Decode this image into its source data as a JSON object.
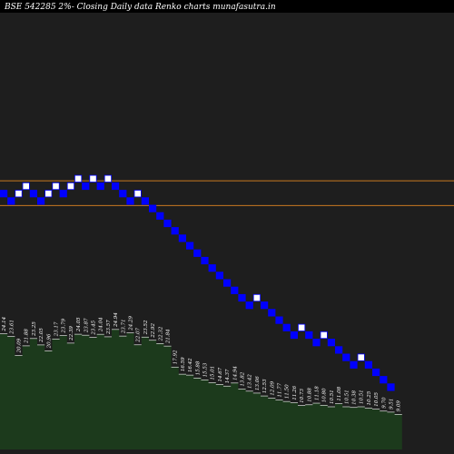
{
  "title": "BSE 542285 2%-  Closing Daily data  Renko  charts munafasutra.in",
  "chart_data": {
    "type": "renko",
    "title": "BSE 542285 2%-  Closing Daily data  Renko  charts munafasutra.in",
    "brick_size_percent": 2,
    "xlabel": "",
    "ylabel": "",
    "colors": {
      "background": "#000000",
      "panel": "#1e1e1e",
      "up_brick": "#ffffff",
      "down_brick": "#0000ff",
      "brick_border": "#0000ff",
      "reference_line": "#c87820",
      "volume_fill": "#1c3a1c",
      "volume_edge": "#ffffff",
      "labels": "#ffffff"
    },
    "reference_lines": [
      {
        "level": 2
      },
      {
        "level": -2
      }
    ],
    "bricks": [
      {
        "dir": "down",
        "level": 0
      },
      {
        "dir": "down",
        "level": -1
      },
      {
        "dir": "up",
        "level": 0
      },
      {
        "dir": "up",
        "level": 1
      },
      {
        "dir": "down",
        "level": 0
      },
      {
        "dir": "down",
        "level": -1
      },
      {
        "dir": "up",
        "level": 0
      },
      {
        "dir": "up",
        "level": 1
      },
      {
        "dir": "down",
        "level": 0
      },
      {
        "dir": "up",
        "level": 1
      },
      {
        "dir": "up",
        "level": 2
      },
      {
        "dir": "down",
        "level": 1
      },
      {
        "dir": "up",
        "level": 2
      },
      {
        "dir": "down",
        "level": 1
      },
      {
        "dir": "up",
        "level": 2
      },
      {
        "dir": "down",
        "level": 1
      },
      {
        "dir": "down",
        "level": 0
      },
      {
        "dir": "down",
        "level": -1
      },
      {
        "dir": "up",
        "level": 0
      },
      {
        "dir": "down",
        "level": -1
      },
      {
        "dir": "down",
        "level": -2
      },
      {
        "dir": "down",
        "level": -3
      },
      {
        "dir": "down",
        "level": -4
      },
      {
        "dir": "down",
        "level": -5
      },
      {
        "dir": "down",
        "level": -6
      },
      {
        "dir": "down",
        "level": -7
      },
      {
        "dir": "down",
        "level": -8
      },
      {
        "dir": "down",
        "level": -9
      },
      {
        "dir": "down",
        "level": -10
      },
      {
        "dir": "down",
        "level": -11
      },
      {
        "dir": "down",
        "level": -12
      },
      {
        "dir": "down",
        "level": -13
      },
      {
        "dir": "down",
        "level": -14
      },
      {
        "dir": "down",
        "level": -15
      },
      {
        "dir": "up",
        "level": -14
      },
      {
        "dir": "down",
        "level": -15
      },
      {
        "dir": "down",
        "level": -16
      },
      {
        "dir": "down",
        "level": -17
      },
      {
        "dir": "down",
        "level": -18
      },
      {
        "dir": "down",
        "level": -19
      },
      {
        "dir": "up",
        "level": -18
      },
      {
        "dir": "down",
        "level": -19
      },
      {
        "dir": "down",
        "level": -20
      },
      {
        "dir": "up",
        "level": -19
      },
      {
        "dir": "down",
        "level": -20
      },
      {
        "dir": "down",
        "level": -21
      },
      {
        "dir": "down",
        "level": -22
      },
      {
        "dir": "down",
        "level": -23
      },
      {
        "dir": "up",
        "level": -22
      },
      {
        "dir": "down",
        "level": -23
      },
      {
        "dir": "down",
        "level": -24
      },
      {
        "dir": "down",
        "level": -25
      },
      {
        "dir": "down",
        "level": -26
      }
    ],
    "volume_labels": [
      "24.14",
      "23.61",
      "20.09",
      "21.88",
      "23.25",
      "22.05",
      "20.96",
      "23.17",
      "23.79",
      "22.39",
      "24.05",
      "23.87",
      "23.45",
      "24.04",
      "23.57",
      "24.94",
      "23.71",
      "24.29",
      "22.07",
      "23.52",
      "22.92",
      "22.32",
      "21.84",
      "17.92",
      "16.59",
      "16.42",
      "15.88",
      "15.53",
      "15.01",
      "14.67",
      "14.37",
      "14.94",
      "13.82",
      "13.42",
      "13.06",
      "12.53",
      "12.09",
      "11.77",
      "11.50",
      "11.26",
      "10.73",
      "10.88",
      "11.18",
      "10.80",
      "10.51",
      "11.08",
      "10.51",
      "10.38",
      "10.51",
      "10.25",
      "10.05",
      "9.70",
      "9.51",
      "9.09"
    ],
    "volume_values": [
      24.14,
      23.61,
      20.09,
      21.88,
      23.25,
      22.05,
      20.96,
      23.17,
      23.79,
      22.39,
      24.05,
      23.87,
      23.45,
      24.04,
      23.57,
      24.94,
      23.71,
      24.29,
      22.07,
      23.52,
      22.92,
      22.32,
      21.84,
      17.92,
      16.59,
      16.42,
      15.88,
      15.53,
      15.01,
      14.67,
      14.37,
      14.94,
      13.82,
      13.42,
      13.06,
      12.53,
      12.09,
      11.77,
      11.5,
      11.26,
      10.73,
      10.88,
      11.18,
      10.8,
      10.51,
      11.08,
      10.51,
      10.38,
      10.51,
      10.25,
      10.05,
      9.7,
      9.51,
      9.09
    ]
  }
}
